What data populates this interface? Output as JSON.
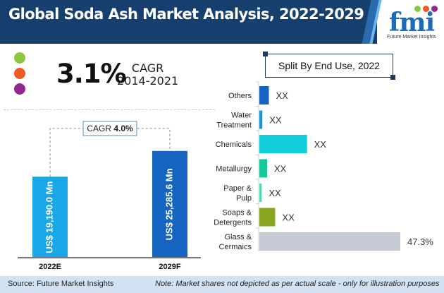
{
  "header": {
    "title": "Global Soda Ash Market Analysis, 2022-2029",
    "logo": {
      "mark": "fmi",
      "subtitle": "Future Market Insights"
    },
    "colors": {
      "bar": "#173f6e"
    }
  },
  "highlight": {
    "value": "3.1%",
    "label": "CAGR",
    "period": "2014-2021",
    "dot_colors": [
      "#8dc63f",
      "#f15a24",
      "#93278f"
    ]
  },
  "chart_data": [
    {
      "type": "bar",
      "title": "",
      "categories": [
        "2022E",
        "2029F"
      ],
      "values": [
        19190.0,
        25285.6
      ],
      "value_labels": [
        "US$ 19,190.0 Mn",
        "US$ 25,285.6 Mn"
      ],
      "colors": [
        "#1aa7e8",
        "#1565c0"
      ],
      "unit": "US$ Mn",
      "cagr_annotation": {
        "label": "CAGR",
        "value": "4.0%"
      },
      "ylim": [
        0,
        30000
      ],
      "grid": false
    },
    {
      "type": "bar",
      "orientation": "horizontal",
      "title": "Split By End Use, 2022",
      "categories": [
        "Others",
        "Water Treatment",
        "Chemicals",
        "Metallurgy",
        "Paper & Pulp",
        "Soaps & Detergents",
        "Glass & Cermaics"
      ],
      "values": [
        3.2,
        1.0,
        16.0,
        2.6,
        0.8,
        5.3,
        47.3
      ],
      "value_labels": [
        "XX",
        "XX",
        "XX",
        "XX",
        "XX",
        "XX",
        "47.3%"
      ],
      "colors": [
        "#1565c0",
        "#1a94d4",
        "#12ccd8",
        "#16c89a",
        "#4fdcb6",
        "#8aa621",
        "#c4c9d3"
      ],
      "unit": "%",
      "grid": false
    }
  ],
  "footer": {
    "source": "Source: Future Market Insights",
    "note": "Note: Market shares not depicted as per actual scale - only for illustration purposes"
  }
}
